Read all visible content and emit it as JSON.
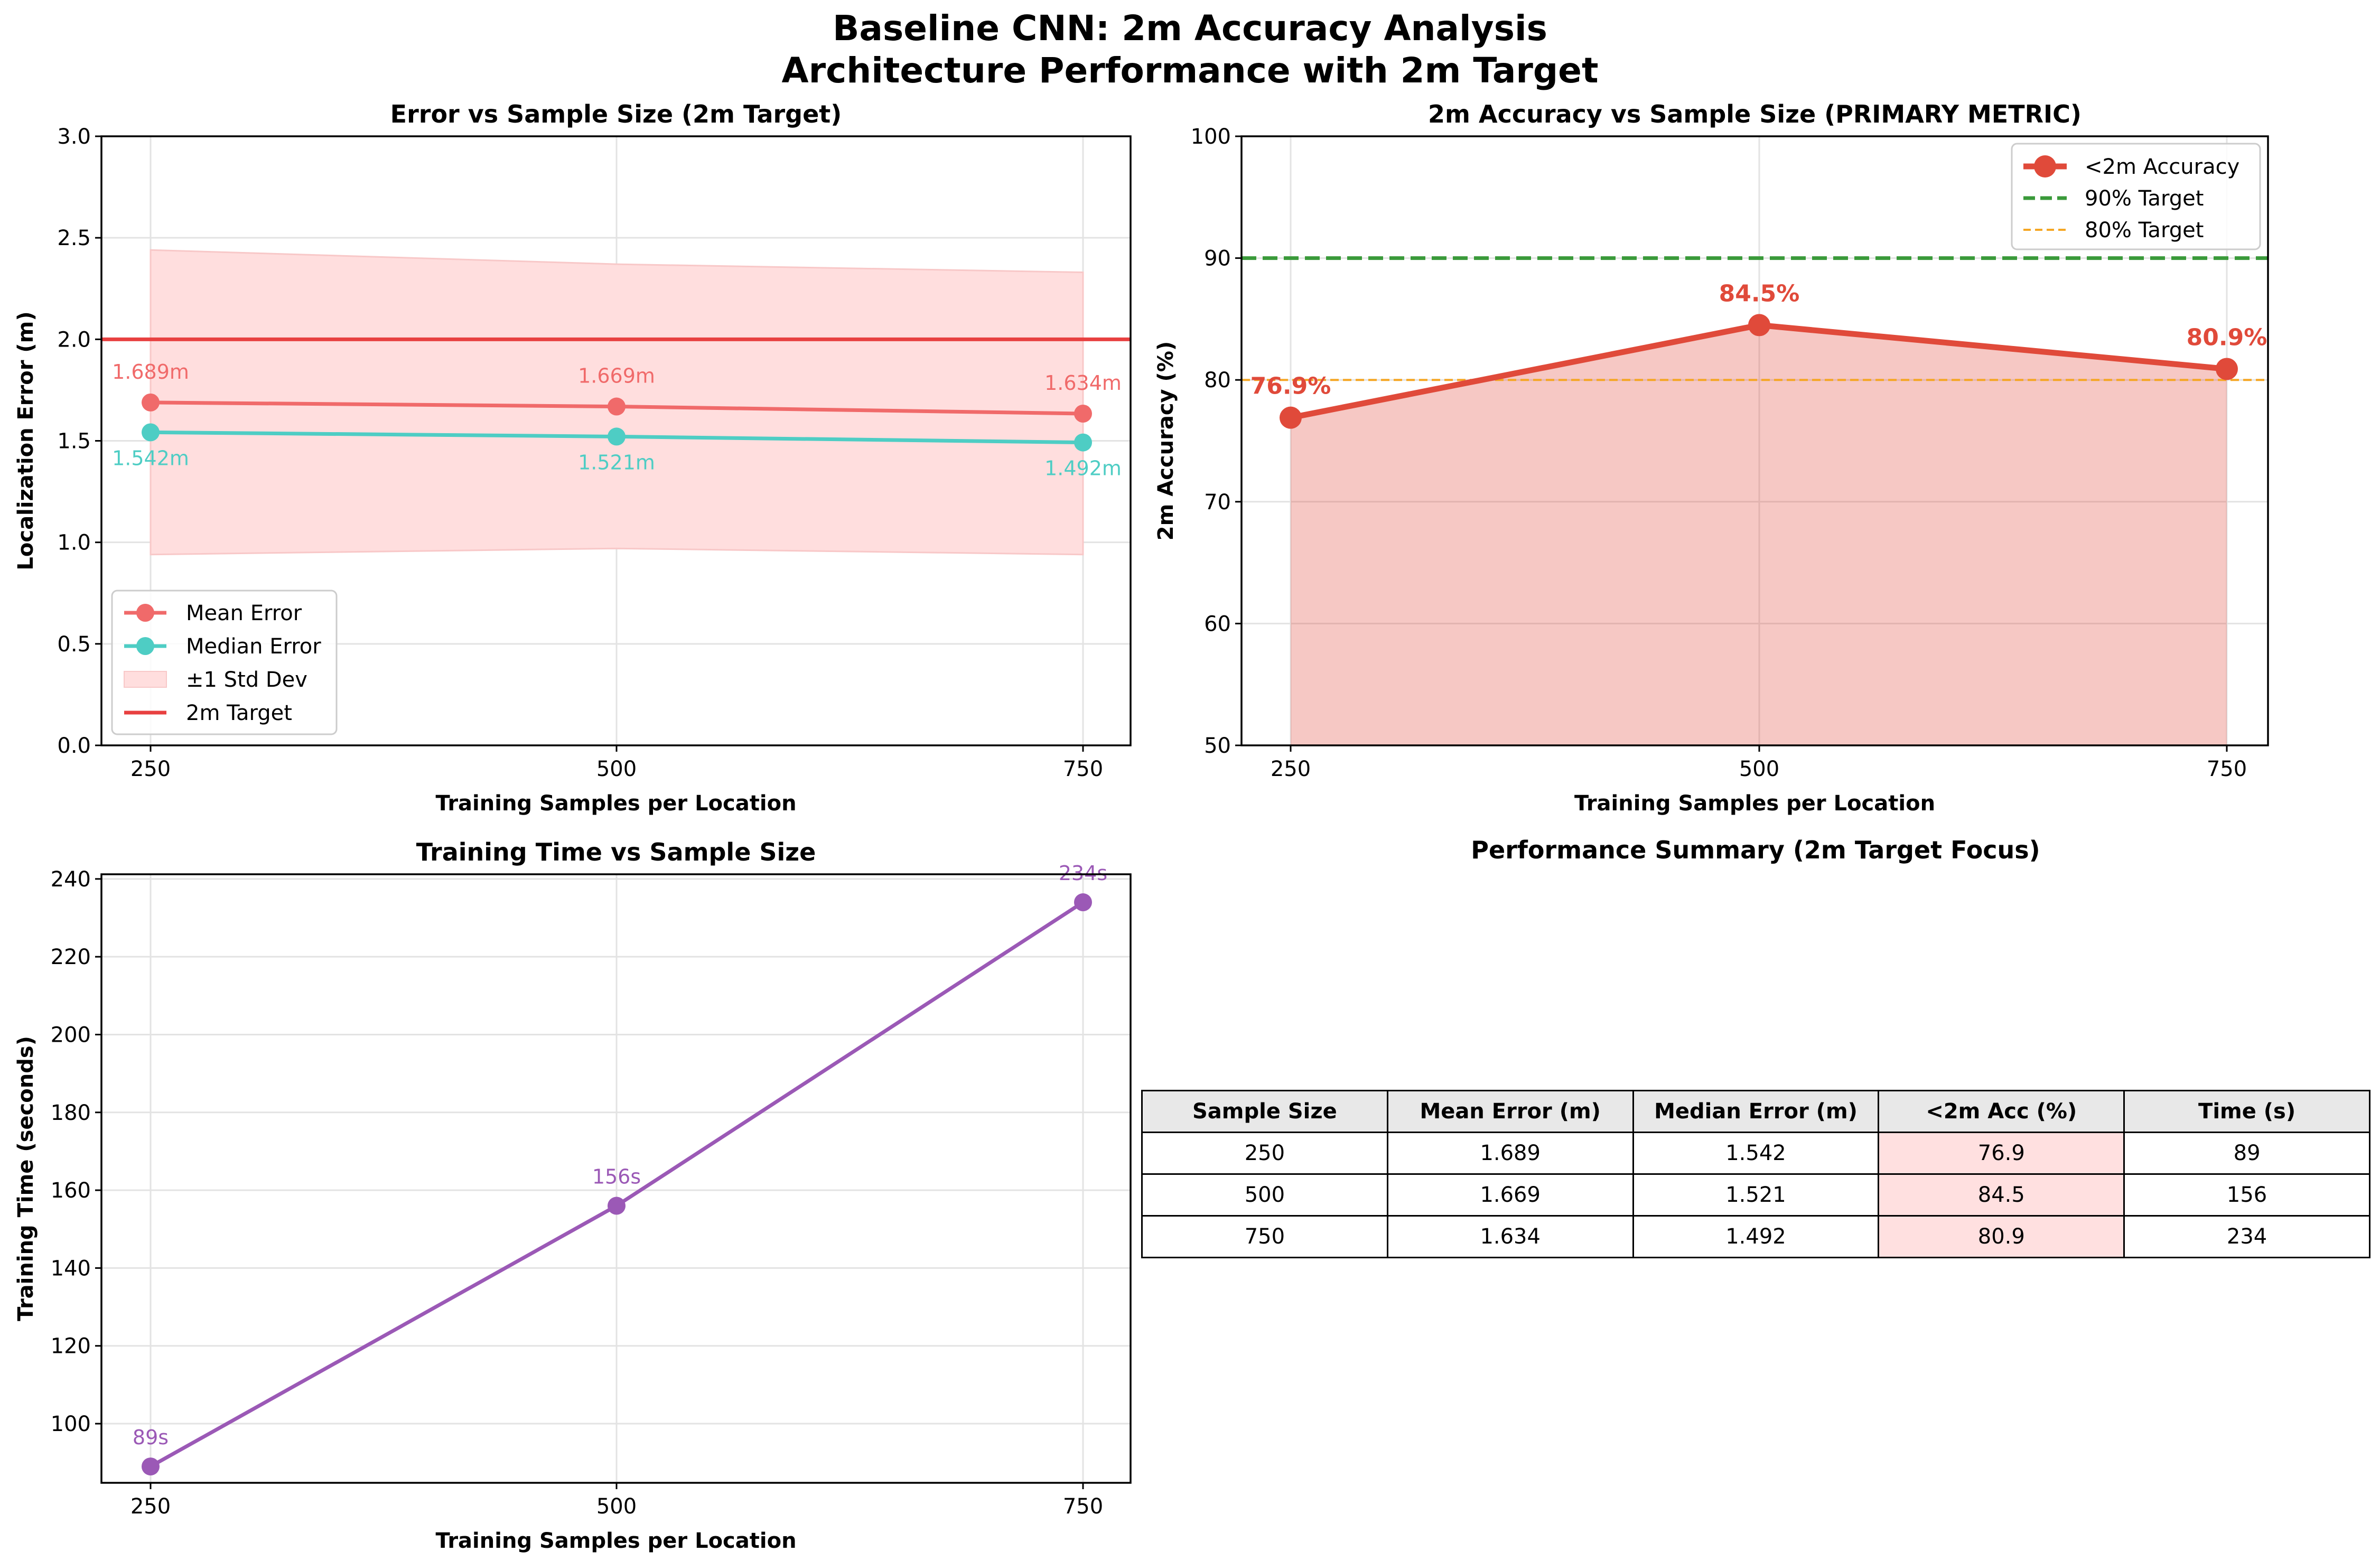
{
  "suptitle": [
    "Baseline CNN: 2m Accuracy Analysis",
    "Architecture Performance with 2m Target"
  ],
  "chart_data": [
    {
      "type": "line",
      "title": "Error vs Sample Size (2m Target)",
      "xlabel": "Training Samples per Location",
      "ylabel": "Localization Error (m)",
      "x": [
        250,
        500,
        750
      ],
      "ylim": [
        0,
        3.0
      ],
      "yticks": [
        "0.0",
        "0.5",
        "1.0",
        "1.5",
        "2.0",
        "2.5",
        "3.0"
      ],
      "series": [
        {
          "name": "Mean Error",
          "values": [
            1.689,
            1.669,
            1.634
          ],
          "color": "#f06a6a",
          "labels": [
            "1.689m",
            "1.669m",
            "1.634m"
          ]
        },
        {
          "name": "Median Error",
          "values": [
            1.542,
            1.521,
            1.492
          ],
          "color": "#4ecdc4",
          "labels": [
            "1.542m",
            "1.521m",
            "1.492m"
          ]
        }
      ],
      "band": {
        "name": "±1 Std Dev",
        "lower": [
          0.94,
          0.97,
          0.94
        ],
        "upper": [
          2.44,
          2.37,
          2.33
        ],
        "color": "#ffdede"
      },
      "hline": {
        "name": "2m Target",
        "value": 2.0,
        "color": "#e84040"
      },
      "grid": true,
      "legend": "lower left"
    },
    {
      "type": "area",
      "title": "2m Accuracy vs Sample Size (PRIMARY METRIC)",
      "xlabel": "Training Samples per Location",
      "ylabel": "2m Accuracy (%)",
      "x": [
        250,
        500,
        750
      ],
      "ylim": [
        50,
        100
      ],
      "yticks": [
        "50",
        "60",
        "70",
        "80",
        "90",
        "100"
      ],
      "series": [
        {
          "name": "<2m Accuracy",
          "values": [
            76.9,
            84.5,
            80.9
          ],
          "color": "#e04a3a",
          "labels": [
            "76.9%",
            "84.5%",
            "80.9%"
          ]
        }
      ],
      "hlines": [
        {
          "name": "90% Target",
          "value": 90,
          "color": "#3a9a3a"
        },
        {
          "name": "80% Target",
          "value": 80,
          "color": "#f5a623"
        }
      ],
      "grid": true,
      "legend": "upper right"
    },
    {
      "type": "line",
      "title": "Training Time vs Sample Size",
      "xlabel": "Training Samples per Location",
      "ylabel": "Training Time (seconds)",
      "x": [
        250,
        500,
        750
      ],
      "ylim": [
        84.8,
        241.2
      ],
      "yticks": [
        "100",
        "120",
        "140",
        "160",
        "180",
        "200",
        "220",
        "240"
      ],
      "series": [
        {
          "name": "",
          "values": [
            89,
            156,
            234
          ],
          "color": "#9b59b6",
          "labels": [
            "89s",
            "156s",
            "234s"
          ]
        }
      ],
      "grid": true
    },
    {
      "type": "table",
      "title": "Performance Summary (2m Target Focus)",
      "columns": [
        "Sample Size",
        "Mean Error (m)",
        "Median Error (m)",
        "<2m Acc (%)",
        "Time (s)"
      ],
      "rows": [
        [
          "250",
          "1.689",
          "1.542",
          "76.9",
          "89"
        ],
        [
          "500",
          "1.669",
          "1.521",
          "84.5",
          "156"
        ],
        [
          "750",
          "1.634",
          "1.492",
          "80.9",
          "234"
        ]
      ],
      "highlight_column_color": "#ffe0e0"
    }
  ]
}
